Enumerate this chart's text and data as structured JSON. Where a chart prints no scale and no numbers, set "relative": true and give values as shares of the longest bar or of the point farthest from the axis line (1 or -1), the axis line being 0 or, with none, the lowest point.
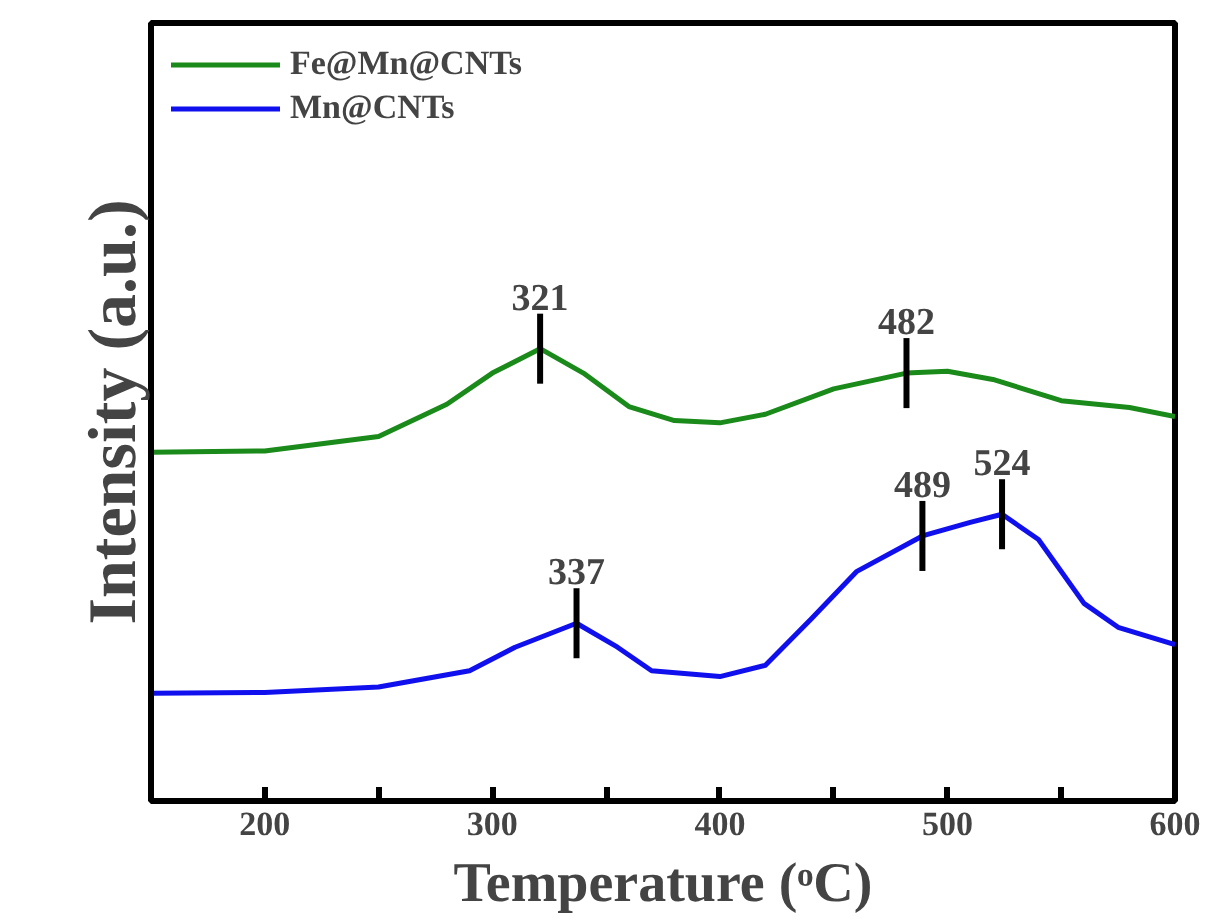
{
  "chart_data": {
    "type": "line",
    "relative": true,
    "xlabel": "Temperature (ᵒC)",
    "ylabel": "Intensity (a.u.)",
    "xlim": [
      150,
      600
    ],
    "xticks": [
      200,
      {
        "value": 250,
        "label": null
      },
      300,
      {
        "value": 350,
        "label": null
      },
      400,
      {
        "value": 450,
        "label": null
      },
      500,
      {
        "value": 550,
        "label": null
      },
      600
    ],
    "grid": false,
    "legend": "top left",
    "marker": "none",
    "line_style": "solid",
    "series": [
      {
        "name": "Fe@Mn@CNTs",
        "color": "#1a8a1a",
        "x": [
          150,
          200,
          250,
          280,
          300,
          321,
          340,
          360,
          380,
          400,
          420,
          450,
          482,
          500,
          520,
          550,
          580,
          600
        ],
        "values": [
          0.771,
          0.774,
          0.806,
          0.877,
          0.946,
          1.0,
          0.946,
          0.872,
          0.841,
          0.836,
          0.855,
          0.911,
          0.946,
          0.95,
          0.932,
          0.885,
          0.87,
          0.85
        ]
      },
      {
        "name": "Mn@CNTs",
        "color": "#1010ee",
        "x": [
          150,
          200,
          250,
          290,
          310,
          337,
          355,
          370,
          400,
          420,
          440,
          460,
          489,
          510,
          524,
          540,
          560,
          575,
          600
        ],
        "values": [
          0.238,
          0.24,
          0.252,
          0.288,
          0.34,
          0.393,
          0.34,
          0.288,
          0.275,
          0.3,
          0.402,
          0.507,
          0.586,
          0.616,
          0.634,
          0.578,
          0.437,
          0.384,
          0.346
        ]
      }
    ],
    "annotations": [
      {
        "text": "321",
        "x": 321,
        "y": 1.0
      },
      {
        "text": "482",
        "x": 482,
        "y": 0.946
      },
      {
        "text": "337",
        "x": 337,
        "y": 0.393
      },
      {
        "text": "489",
        "x": 489,
        "y": 0.586
      },
      {
        "text": "524",
        "x": 524,
        "y": 0.634
      }
    ]
  }
}
